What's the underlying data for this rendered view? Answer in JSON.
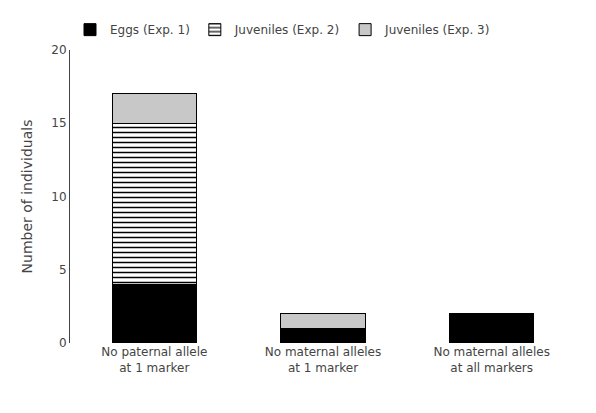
{
  "chart_data": {
    "type": "bar",
    "stacked": true,
    "categories": [
      "No paternal allele\nat 1 marker",
      "No maternal alleles\nat 1 marker",
      "No maternal alleles\nat all markers"
    ],
    "series": [
      {
        "name": "Eggs (Exp. 1)",
        "color": "#000000",
        "values": [
          4,
          1,
          2
        ]
      },
      {
        "name": "Juveniles (Exp. 2)",
        "color": "#ffffff",
        "values": [
          11,
          0,
          0
        ]
      },
      {
        "name": "Juveniles (Exp. 3)",
        "color": "#c8c8c8",
        "values": [
          2,
          1,
          0
        ]
      }
    ],
    "ylabel": "Number of individuals",
    "ylim": [
      0,
      20
    ],
    "yticks": [
      0,
      5,
      10,
      15,
      20
    ],
    "grid": false,
    "legend": "upper left"
  }
}
